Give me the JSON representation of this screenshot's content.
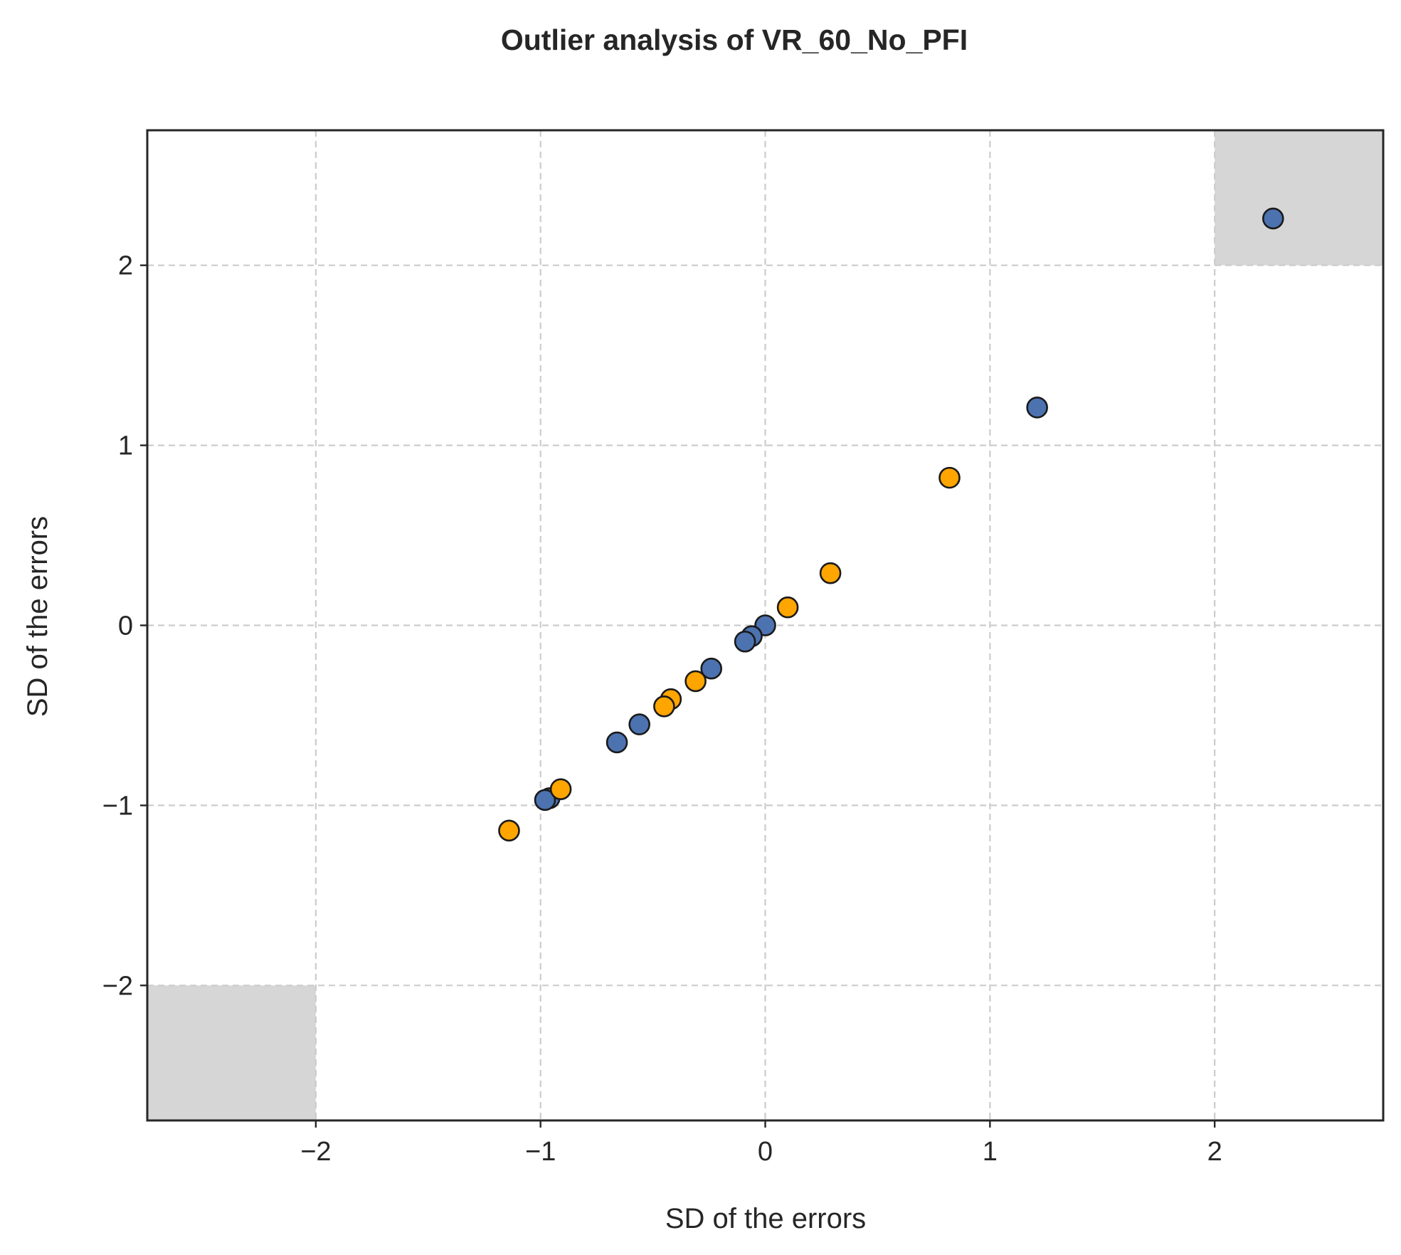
{
  "chart_data": {
    "type": "scatter",
    "title": "Outlier analysis of VR_60_No_PFI",
    "xlabel": "SD of the errors",
    "ylabel": "SD of the errors",
    "xlim": [
      -2.75,
      2.75
    ],
    "ylim": [
      -2.75,
      2.75
    ],
    "xticks": [
      -2,
      -1,
      0,
      1,
      2
    ],
    "yticks": [
      -2,
      -1,
      0,
      1,
      2
    ],
    "tick_labels": [
      "−2",
      "−1",
      "0",
      "1",
      "2"
    ],
    "grid": true,
    "outlier_zones": [
      {
        "x": [
          2,
          2.75
        ],
        "y": [
          2,
          2.75
        ]
      },
      {
        "x": [
          -2.75,
          -2
        ],
        "y": [
          -2.75,
          -2
        ]
      }
    ],
    "series": [
      {
        "color": "#4c72b0",
        "points": [
          [
            2.26,
            2.26
          ],
          [
            1.21,
            1.21
          ],
          [
            0.0,
            -0.0
          ],
          [
            -0.06,
            -0.06
          ],
          [
            -0.09,
            -0.09
          ],
          [
            -0.24,
            -0.24
          ],
          [
            -0.56,
            -0.55
          ],
          [
            -0.66,
            -0.65
          ],
          [
            -0.96,
            -0.96
          ],
          [
            -0.98,
            -0.97
          ]
        ]
      },
      {
        "color": "#ffa500",
        "points": [
          [
            0.82,
            0.82
          ],
          [
            0.29,
            0.29
          ],
          [
            0.1,
            0.1
          ],
          [
            -0.31,
            -0.31
          ],
          [
            -0.42,
            -0.41
          ],
          [
            -0.45,
            -0.45
          ],
          [
            -0.91,
            -0.91
          ],
          [
            -1.14,
            -1.14
          ]
        ]
      }
    ]
  }
}
